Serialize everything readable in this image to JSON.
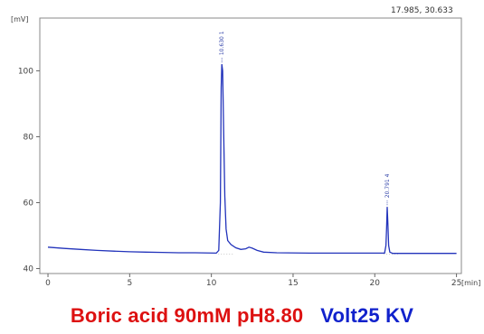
{
  "chart_data": {
    "type": "line",
    "x_unit": "[min]",
    "y_unit": "[mV]",
    "xlim": [
      -0.5,
      25.3
    ],
    "ylim": [
      38.5,
      116
    ],
    "x_ticks": [
      0,
      5,
      10,
      15,
      20,
      25
    ],
    "y_ticks": [
      40,
      60,
      80,
      100
    ],
    "x_tick_labels": [
      "0",
      "5",
      "10",
      "15",
      "20",
      "25"
    ],
    "y_tick_labels": [
      "40",
      "60",
      "80",
      "100"
    ],
    "cursor_readout": "17.985, 30.633",
    "grid": false,
    "series": [
      {
        "color": "#2233bb",
        "points": [
          [
            0,
            46.5
          ],
          [
            1,
            46.1
          ],
          [
            2,
            45.8
          ],
          [
            3,
            45.5
          ],
          [
            4,
            45.3
          ],
          [
            5,
            45.1
          ],
          [
            6,
            45.0
          ],
          [
            7,
            44.9
          ],
          [
            8,
            44.8
          ],
          [
            9,
            44.8
          ],
          [
            10.3,
            44.7
          ],
          [
            10.45,
            45.5
          ],
          [
            10.55,
            60
          ],
          [
            10.6,
            95
          ],
          [
            10.64,
            102
          ],
          [
            10.69,
            100
          ],
          [
            10.75,
            82
          ],
          [
            10.82,
            62
          ],
          [
            10.9,
            52
          ],
          [
            11.0,
            48.5
          ],
          [
            11.2,
            47.3
          ],
          [
            11.5,
            46.3
          ],
          [
            11.8,
            45.8
          ],
          [
            12.1,
            46.0
          ],
          [
            12.3,
            46.5
          ],
          [
            12.5,
            46.2
          ],
          [
            12.8,
            45.5
          ],
          [
            13.2,
            45.0
          ],
          [
            14,
            44.8
          ],
          [
            16,
            44.7
          ],
          [
            18,
            44.7
          ],
          [
            20,
            44.7
          ],
          [
            20.6,
            44.7
          ],
          [
            20.68,
            47
          ],
          [
            20.72,
            52
          ],
          [
            20.76,
            58.7
          ],
          [
            20.8,
            54
          ],
          [
            20.85,
            47
          ],
          [
            20.92,
            45
          ],
          [
            21.1,
            44.6
          ],
          [
            22,
            44.6
          ],
          [
            24,
            44.6
          ],
          [
            25,
            44.6
          ]
        ]
      }
    ],
    "peaks": [
      {
        "x": 10.64,
        "y": 102,
        "label": "10.630 1"
      },
      {
        "x": 20.76,
        "y": 58.7,
        "label": "20.791 4"
      }
    ],
    "caption_red": "Boric acid 90mM pH8.80",
    "caption_blue": "Volt25 KV"
  }
}
